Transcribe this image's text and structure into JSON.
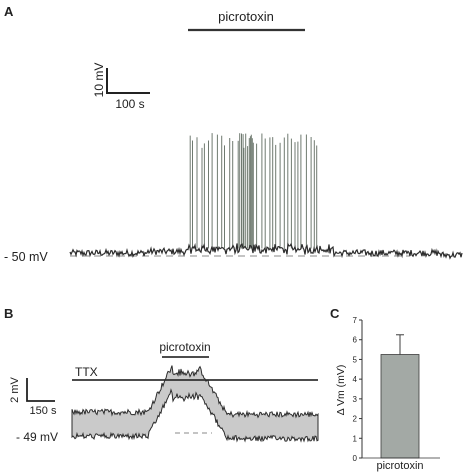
{
  "panels": {
    "a": {
      "letter": "A",
      "drug_label": "picrotoxin",
      "scale_v_label": "10 mV",
      "scale_t_label": "100 s",
      "baseline_label": "- 50 mV"
    },
    "b": {
      "letter": "B",
      "drug_label": "picrotoxin",
      "ttx_label": "TTX",
      "scale_v_label": "2 mV",
      "scale_t_label": "150 s",
      "baseline_label": "- 49 mV"
    },
    "c": {
      "letter": "C",
      "ylabel": "Δ Vm (mV)",
      "category_label": "picrotoxin"
    }
  },
  "colors": {
    "trace": "#2b2b2b",
    "spike": "#6f7a70",
    "bar_fill": "#a3a9a5",
    "bar_edge": "#3c3c3c",
    "axis": "#333333",
    "dashed_baseline": "#888888"
  },
  "chart_data": [
    {
      "type": "line",
      "panel": "A",
      "units": {
        "x": "s",
        "y": "mV"
      },
      "baseline_mV": -50,
      "drug_application_s": [
        185,
        310
      ],
      "burst_window_s": [
        185,
        390
      ],
      "spike_peak_mV": -5,
      "scalebar": {
        "voltage_mV": 10,
        "time_s": 100
      }
    },
    {
      "type": "line",
      "panel": "B",
      "units": {
        "x": "s",
        "y": "mV"
      },
      "baseline_mV": -49,
      "ttx_s": [
        0,
        810
      ],
      "drug_application_s": [
        270,
        390
      ],
      "peak_depolarization_mV": 5.3,
      "scalebar": {
        "voltage_mV": 2,
        "time_s": 150
      }
    },
    {
      "type": "bar",
      "panel": "C",
      "categories": [
        "picrotoxin"
      ],
      "values": [
        5.25
      ],
      "error": [
        1.0
      ],
      "ylabel": "Δ Vm (mV)",
      "ylim": [
        0,
        7
      ],
      "yticks": [
        0,
        1,
        2,
        3,
        4,
        5,
        6,
        7
      ],
      "grid": false
    }
  ]
}
